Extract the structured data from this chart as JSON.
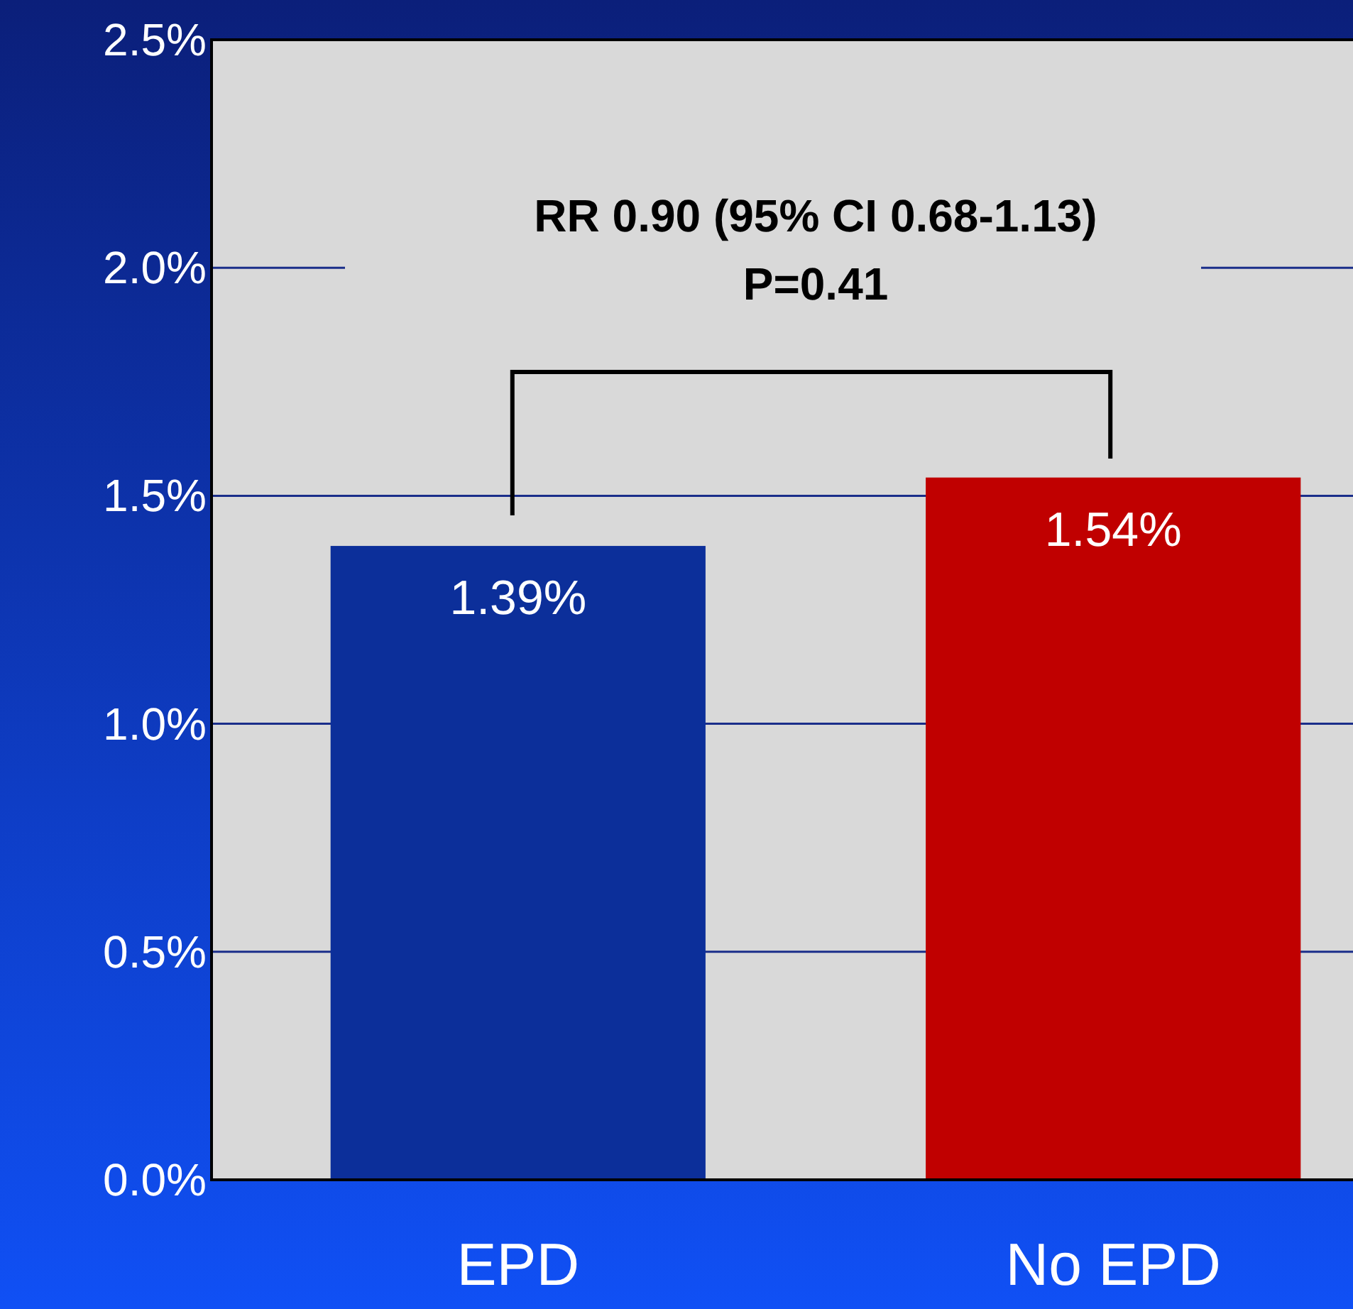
{
  "chart_data": {
    "type": "bar",
    "categories": [
      "EPD",
      "No EPD"
    ],
    "values": [
      1.39,
      1.54
    ],
    "colors": [
      "#0c2f9a",
      "#c00000"
    ],
    "value_labels": [
      "1.39%",
      "1.54%"
    ],
    "ylim": [
      0,
      2.5
    ],
    "yticks": [
      {
        "value": 0,
        "label": "0.0%"
      },
      {
        "value": 0.5,
        "label": "0.5%"
      },
      {
        "value": 1,
        "label": "1.0%"
      },
      {
        "value": 1.5,
        "label": "1.5%"
      },
      {
        "value": 2,
        "label": "2.0%"
      },
      {
        "value": 2.5,
        "label": "2.5%"
      }
    ],
    "grid": "y",
    "annotations": [
      "RR 0.90 (95% CI 0.68-1.13)\nP=0.41"
    ]
  }
}
